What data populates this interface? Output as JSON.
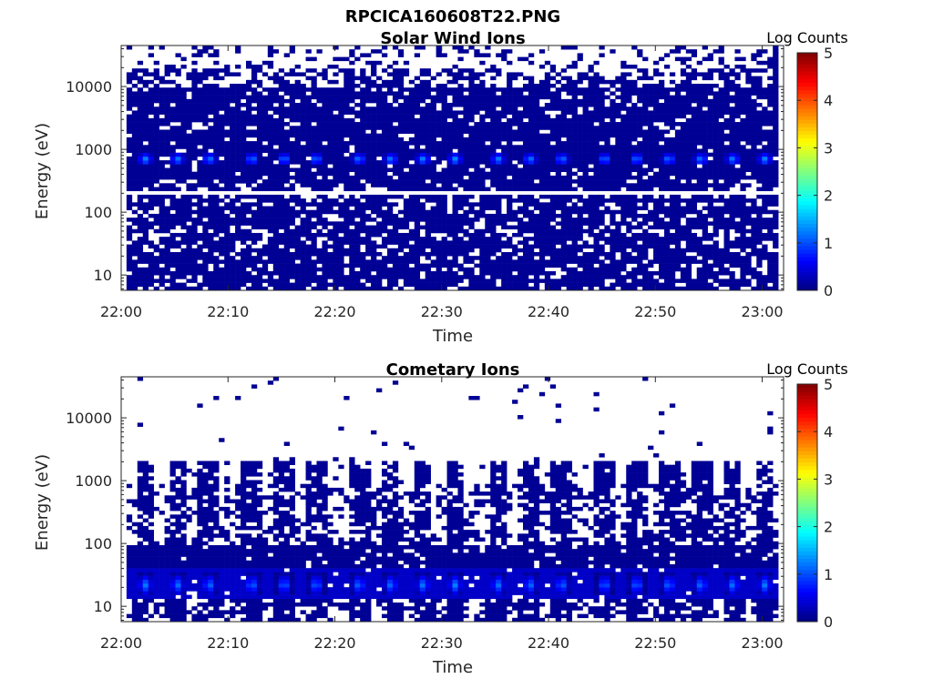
{
  "figure": {
    "title": "RPCICA160608T22.PNG"
  },
  "chart_data": [
    {
      "type": "heatmap",
      "title": "Solar Wind Ions",
      "xlabel": "Time",
      "ylabel": "Energy (eV)",
      "x_ticks": [
        "22:00",
        "22:10",
        "22:20",
        "22:30",
        "22:40",
        "22:50",
        "23:00"
      ],
      "y_ticks": [
        "10",
        "100",
        "1000",
        "10000"
      ],
      "y_scale": "log",
      "ylim": [
        5.7,
        45000
      ],
      "xlim": [
        "22:00",
        "23:02"
      ],
      "data_time_range": [
        "22:00:30",
        "23:01:30"
      ],
      "colorbar": {
        "label": "Log Counts",
        "ticks": [
          "0",
          "1",
          "2",
          "3",
          "4",
          "5"
        ],
        "range": [
          0,
          5
        ],
        "colormap": "jet"
      },
      "gap_energy_eV": 200,
      "peaks": {
        "energy_eV": 700,
        "log_counts": 1.4,
        "times": [
          "22:02",
          "22:05",
          "22:08",
          "22:12",
          "22:15",
          "22:18",
          "22:22",
          "22:25",
          "22:28",
          "22:31",
          "22:35",
          "22:38",
          "22:41",
          "22:45",
          "22:48",
          "22:51",
          "22:54",
          "22:57",
          "23:00"
        ]
      },
      "background_log_counts": 0.1
    },
    {
      "type": "heatmap",
      "title": "Cometary Ions",
      "xlabel": "Time",
      "ylabel": "Energy (eV)",
      "x_ticks": [
        "22:00",
        "22:10",
        "22:20",
        "22:30",
        "22:40",
        "22:50",
        "23:00"
      ],
      "y_ticks": [
        "10",
        "100",
        "1000",
        "10000"
      ],
      "y_scale": "log",
      "ylim": [
        5.7,
        45000
      ],
      "xlim": [
        "22:00",
        "23:02"
      ],
      "data_time_range": [
        "22:00:30",
        "23:01:30"
      ],
      "colorbar": {
        "label": "Log Counts",
        "ticks": [
          "0",
          "1",
          "2",
          "3",
          "4",
          "5"
        ],
        "range": [
          0,
          5
        ],
        "colormap": "jet"
      },
      "low_energy_band_eV": [
        13,
        40
      ],
      "peaks": {
        "energy_eV": 22,
        "log_counts": 1.3,
        "times": [
          "22:02",
          "22:05",
          "22:08",
          "22:12",
          "22:15",
          "22:18",
          "22:22",
          "22:25",
          "22:28",
          "22:31",
          "22:35",
          "22:38",
          "22:41",
          "22:45",
          "22:48",
          "22:51",
          "22:54",
          "22:57",
          "23:00"
        ]
      },
      "upper_cutoff_eV": 1000,
      "background_log_counts": 0.1
    }
  ]
}
